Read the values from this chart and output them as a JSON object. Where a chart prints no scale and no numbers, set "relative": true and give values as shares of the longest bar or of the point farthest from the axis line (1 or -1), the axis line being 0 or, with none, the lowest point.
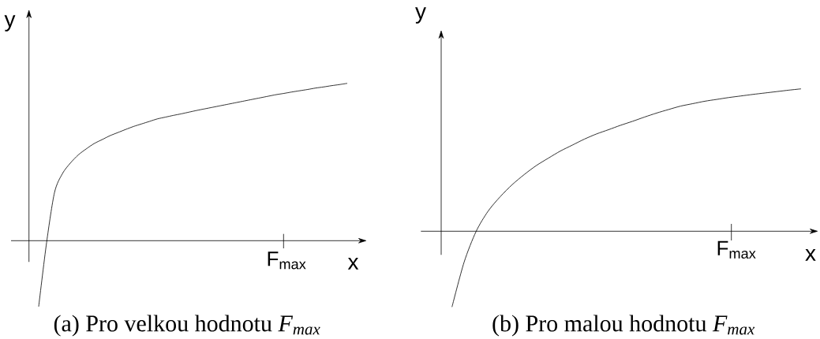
{
  "chart_data": [
    {
      "type": "line",
      "relative": true,
      "xlabel": "x",
      "ylabel": "y",
      "color": "#000000",
      "categories": [
        null,
        null,
        null,
        null,
        null,
        null,
        null,
        null,
        null,
        null,
        null,
        null,
        null,
        null,
        null,
        null,
        null,
        null,
        null,
        null,
        null,
        null,
        null,
        null,
        null,
        null,
        null,
        null,
        null,
        null,
        null,
        null,
        null,
        null,
        null,
        null,
        null,
        null,
        null,
        null
      ],
      "values": [
        -0.419,
        -0.012,
        0.306,
        0.426,
        0.493,
        0.545,
        0.583,
        0.617,
        0.642,
        0.667,
        0.687,
        0.707,
        0.726,
        0.742,
        0.758,
        0.774,
        0.785,
        0.796,
        0.806,
        0.817,
        0.828,
        0.838,
        0.848,
        0.858,
        0.868,
        0.878,
        0.888,
        0.898,
        0.908,
        0.918,
        0.928,
        0.936,
        0.945,
        0.953,
        0.961,
        0.97,
        0.977,
        0.985,
        0.992,
        1
      ],
      "annotations": [
        "F$_{max}$",
        "(a) Pro velkou hodnotu *F$_{max}$*"
      ]
    },
    {
      "type": "line",
      "relative": true,
      "xlabel": "x",
      "ylabel": "y",
      "color": "#000000",
      "categories": [
        null,
        null,
        null,
        null,
        null,
        null,
        null,
        null,
        null,
        null,
        null,
        null,
        null,
        null,
        null,
        null,
        null,
        null,
        null,
        null,
        null,
        null,
        null,
        null,
        null,
        null,
        null,
        null,
        null,
        null
      ],
      "values": [
        -0.532,
        -0.219,
        -0.002,
        0.141,
        0.242,
        0.327,
        0.398,
        0.461,
        0.513,
        0.563,
        0.605,
        0.647,
        0.683,
        0.713,
        0.744,
        0.772,
        0.802,
        0.83,
        0.855,
        0.879,
        0.896,
        0.913,
        0.926,
        0.939,
        0.95,
        0.961,
        0.971,
        0.981,
        0.991,
        1
      ],
      "annotations": [
        "F$_{max}$",
        "(b) Pro malou hodnotu *F$_{max}$*"
      ]
    }
  ]
}
